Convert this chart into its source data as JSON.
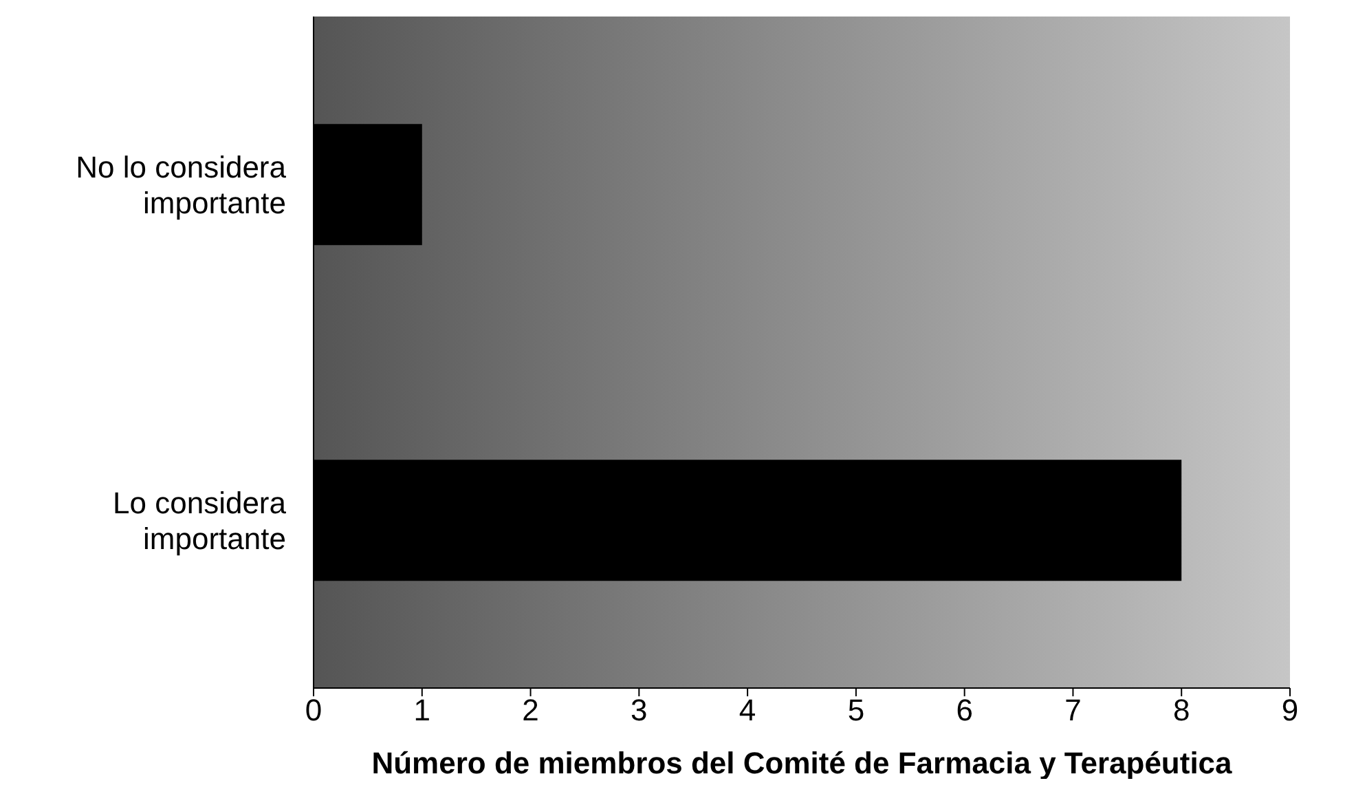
{
  "chart_data": {
    "type": "bar",
    "orientation": "horizontal",
    "xlabel": "Número de miembros del Comité de Farmacia y Terapéutica",
    "categories": [
      "No lo considera importante",
      "Lo considera importante"
    ],
    "values": [
      1,
      8
    ],
    "color": "#000000",
    "xlim": [
      0,
      9
    ],
    "xticks": [
      0,
      1,
      2,
      3,
      4,
      5,
      6,
      7,
      8,
      9
    ],
    "grid": false
  }
}
